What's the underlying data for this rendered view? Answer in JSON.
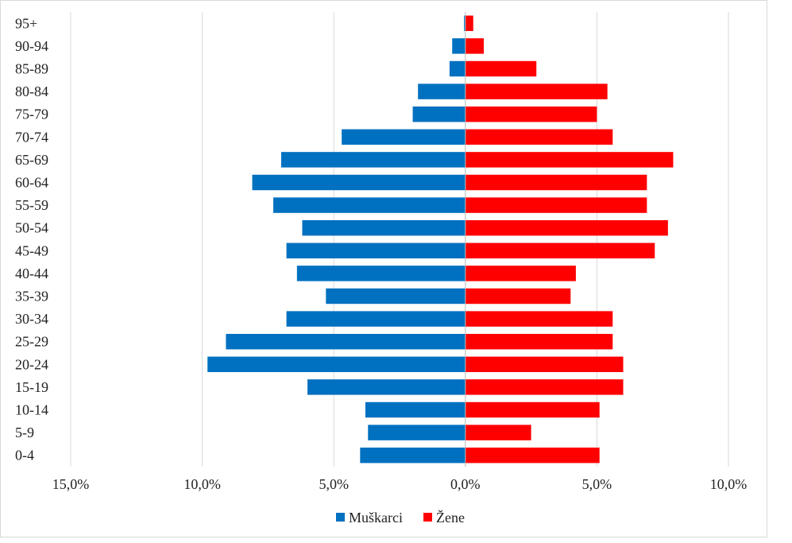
{
  "chart_data": {
    "type": "bar",
    "orientation": "horizontal",
    "subtype": "population-pyramid",
    "categories": [
      "95+",
      "90-94",
      "85-89",
      "80-84",
      "75-79",
      "70-74",
      "65-69",
      "60-64",
      "55-59",
      "50-54",
      "45-49",
      "40-44",
      "35-39",
      "30-34",
      "25-29",
      "20-24",
      "15-19",
      "10-14",
      "5-9",
      "0-4"
    ],
    "series": [
      {
        "name": "Muškarci",
        "color": "#0070c0",
        "side": "left",
        "values": [
          0.05,
          0.5,
          0.6,
          1.8,
          2.0,
          4.7,
          7.0,
          8.1,
          7.3,
          6.2,
          6.8,
          6.4,
          5.3,
          6.8,
          9.1,
          9.8,
          6.0,
          3.8,
          3.7,
          4.0
        ]
      },
      {
        "name": "Žene",
        "color": "#ff0000",
        "side": "right",
        "values": [
          0.3,
          0.7,
          2.7,
          5.4,
          5.0,
          5.6,
          7.9,
          6.9,
          6.9,
          7.7,
          7.2,
          4.2,
          4.0,
          5.6,
          5.6,
          6.0,
          6.0,
          5.1,
          2.5,
          5.1
        ]
      }
    ],
    "x_ticks": [
      "15,0%",
      "10,0%",
      "5,0%",
      "0,0%",
      "5,0%",
      "10,0%"
    ],
    "x_tick_values": [
      -15,
      -10,
      -5,
      0,
      5,
      10
    ],
    "xlim": [
      -15,
      10
    ],
    "grid": "vertical",
    "legend_position": "bottom"
  }
}
